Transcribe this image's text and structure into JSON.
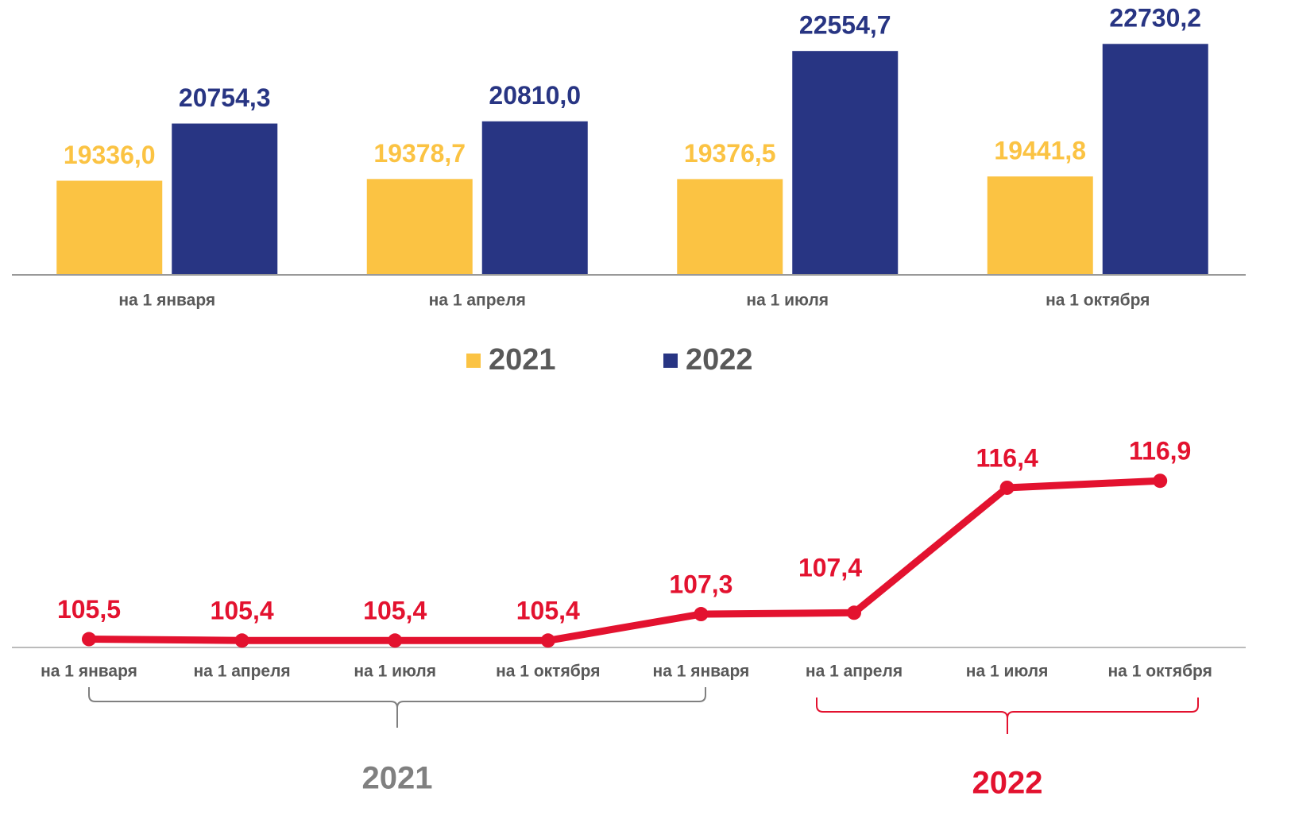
{
  "chart_data": [
    {
      "type": "bar",
      "categories": [
        "на 1 января",
        "на 1 апреля",
        "на 1 июля",
        "на 1 октября"
      ],
      "series": [
        {
          "name": "2021",
          "color": "#fbc343",
          "values": [
            19336.0,
            19378.7,
            19376.5,
            19441.8
          ],
          "value_labels": [
            "19336,0",
            "19378,7",
            "19376,5",
            "19441,8"
          ]
        },
        {
          "name": "2022",
          "color": "#283583",
          "values": [
            20754.3,
            20810.0,
            22554.7,
            22730.2
          ],
          "value_labels": [
            "20754,3",
            "20810,0",
            "22554,7",
            "22730,2"
          ]
        }
      ],
      "ylim": [
        17000,
        23800
      ]
    },
    {
      "type": "line",
      "categories": [
        "на 1 января",
        "на 1 апреля",
        "на 1 июля",
        "на 1 октября",
        "на 1 января",
        "на 1 апреля",
        "на 1 июля",
        "на 1 октября"
      ],
      "values": [
        105.5,
        105.4,
        105.4,
        105.4,
        107.3,
        107.4,
        116.4,
        116.9
      ],
      "value_labels": [
        "105,5",
        "105,4",
        "105,4",
        "105,4",
        "107,3",
        "107,4",
        "116,4",
        "116,9"
      ],
      "color": "#e3122f",
      "ylim": [
        104.9,
        120
      ],
      "groups": [
        {
          "label": "2021",
          "color": "#808080"
        },
        {
          "label": "2022",
          "color": "#e3122f"
        }
      ]
    }
  ]
}
